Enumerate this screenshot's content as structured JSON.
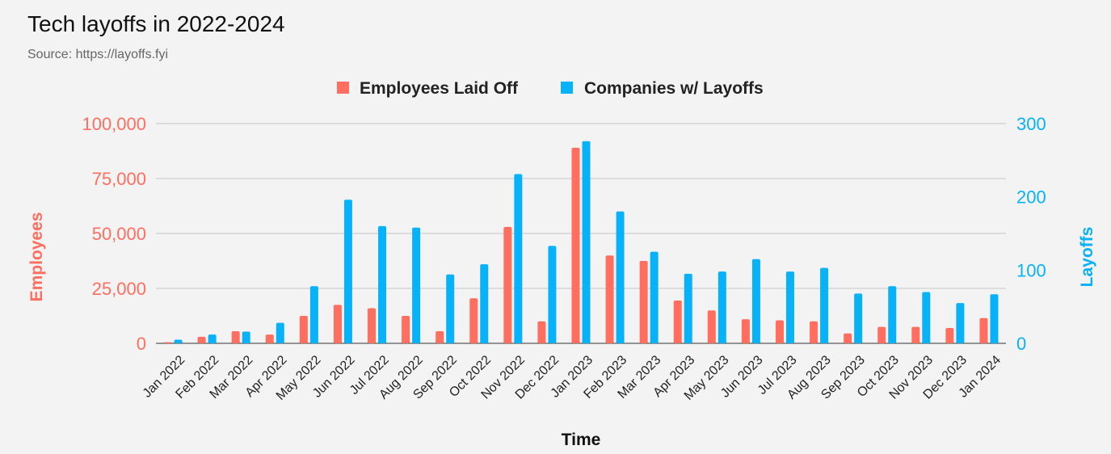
{
  "chart_data": {
    "type": "bar",
    "title": "Tech layoffs in 2022-2024",
    "subtitle": "Source: https://layoffs.fyi",
    "xlabel": "Time",
    "ylabel_left": "Employees",
    "ylabel_right": "Layoffs",
    "ylim_left": [
      0,
      100000
    ],
    "ylim_right": [
      0,
      300
    ],
    "yticks_left": [
      "0",
      "25,000",
      "50,000",
      "75,000",
      "100,000"
    ],
    "yticks_right": [
      "0",
      "100",
      "200",
      "300"
    ],
    "grid": true,
    "legend_position": "top-center",
    "categories": [
      "Jan 2022",
      "Feb 2022",
      "Mar 2022",
      "Apr 2022",
      "May 2022",
      "Jun 2022",
      "Jul 2022",
      "Aug 2022",
      "Sep 2022",
      "Oct 2022",
      "Nov 2022",
      "Dec 2022",
      "Jan 2023",
      "Feb 2023",
      "Mar 2023",
      "Apr 2023",
      "May 2023",
      "Jun 2023",
      "Jul 2023",
      "Aug 2023",
      "Sep 2023",
      "Oct 2023",
      "Nov 2023",
      "Dec 2023",
      "Jan 2024"
    ],
    "series": [
      {
        "name": "Employees Laid Off",
        "axis": "left",
        "color": "#ff6e5f",
        "values": [
          500,
          3000,
          5500,
          4000,
          12500,
          17500,
          16000,
          12500,
          5500,
          20500,
          53000,
          10000,
          89000,
          40000,
          37500,
          19500,
          15000,
          11000,
          10500,
          10000,
          4500,
          7500,
          7500,
          7000,
          11500
        ]
      },
      {
        "name": "Companies w/ Layoffs",
        "axis": "right",
        "color": "#08b2f8",
        "values": [
          5,
          12,
          16,
          28,
          78,
          196,
          160,
          158,
          94,
          108,
          231,
          133,
          276,
          180,
          125,
          95,
          98,
          115,
          98,
          103,
          68,
          78,
          70,
          55,
          67
        ]
      }
    ]
  }
}
